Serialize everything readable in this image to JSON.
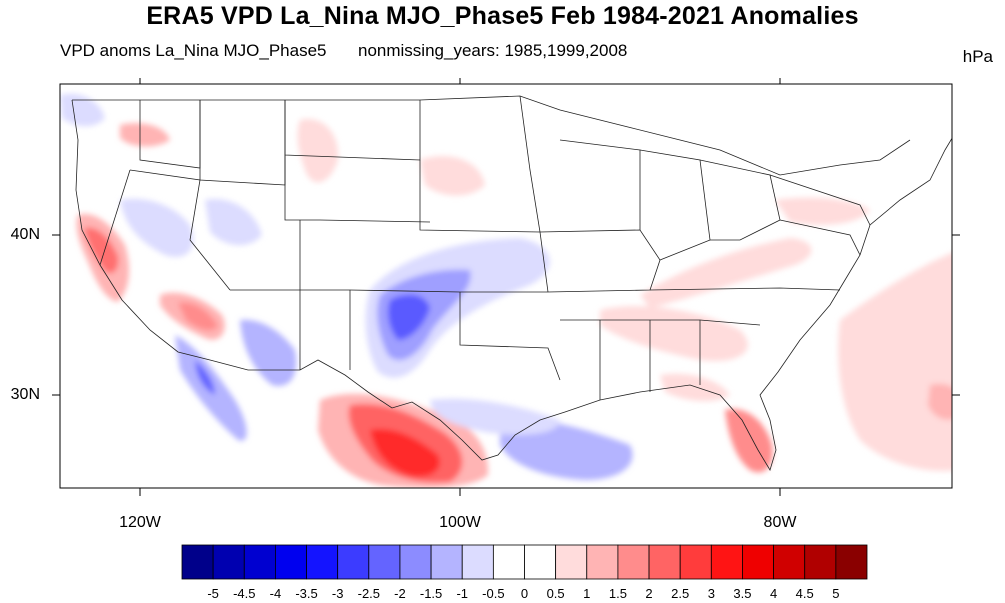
{
  "title": "ERA5 VPD La_Nina MJO_Phase5 Feb 1984-2021 Anomalies",
  "subtitle_left": "VPD anoms La_Nina MJO_Phase5",
  "subtitle_center": "nonmissing_years: 1985,1999,2008",
  "units": "hPa",
  "lat_labels": [
    "40N",
    "30N"
  ],
  "lon_labels": [
    "120W",
    "100W",
    "80W"
  ],
  "colorbar": {
    "labels": [
      "-5",
      "-4.5",
      "-4",
      "-3.5",
      "-3",
      "-2.5",
      "-2",
      "-1.5",
      "-1",
      "-0.5",
      "0",
      "0.5",
      "1",
      "1.5",
      "2",
      "2.5",
      "3",
      "3.5",
      "4",
      "4.5",
      "5"
    ],
    "colors": [
      "#00008a",
      "#0000b0",
      "#0000d0",
      "#0000ef",
      "#1414ff",
      "#3c3cff",
      "#6464ff",
      "#8c8cff",
      "#b4b4ff",
      "#dcdcff",
      "#ffffff",
      "#ffffff",
      "#ffdcdc",
      "#ffb4b4",
      "#ff8c8c",
      "#ff6464",
      "#ff3c3c",
      "#ff1414",
      "#ef0000",
      "#d00000",
      "#b00000",
      "#8a0000"
    ]
  }
}
